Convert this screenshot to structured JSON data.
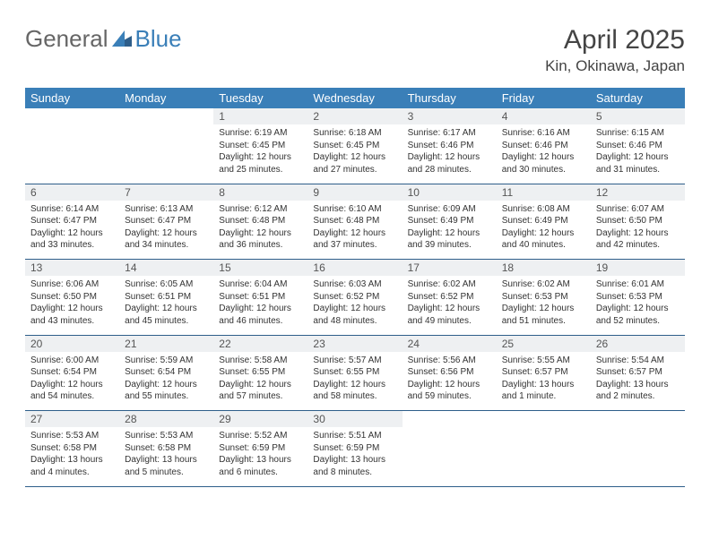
{
  "logo": {
    "part1": "General",
    "part2": "Blue"
  },
  "title": "April 2025",
  "location": "Kin, Okinawa, Japan",
  "colors": {
    "header_bg": "#3a7fb8",
    "header_text": "#ffffff",
    "daynum_bg": "#eef0f2",
    "border": "#2e5e8a",
    "body_text": "#333333"
  },
  "weekdays": [
    "Sunday",
    "Monday",
    "Tuesday",
    "Wednesday",
    "Thursday",
    "Friday",
    "Saturday"
  ],
  "weeks": [
    [
      null,
      null,
      {
        "n": "1",
        "sr": "Sunrise: 6:19 AM",
        "ss": "Sunset: 6:45 PM",
        "dl": "Daylight: 12 hours and 25 minutes."
      },
      {
        "n": "2",
        "sr": "Sunrise: 6:18 AM",
        "ss": "Sunset: 6:45 PM",
        "dl": "Daylight: 12 hours and 27 minutes."
      },
      {
        "n": "3",
        "sr": "Sunrise: 6:17 AM",
        "ss": "Sunset: 6:46 PM",
        "dl": "Daylight: 12 hours and 28 minutes."
      },
      {
        "n": "4",
        "sr": "Sunrise: 6:16 AM",
        "ss": "Sunset: 6:46 PM",
        "dl": "Daylight: 12 hours and 30 minutes."
      },
      {
        "n": "5",
        "sr": "Sunrise: 6:15 AM",
        "ss": "Sunset: 6:46 PM",
        "dl": "Daylight: 12 hours and 31 minutes."
      }
    ],
    [
      {
        "n": "6",
        "sr": "Sunrise: 6:14 AM",
        "ss": "Sunset: 6:47 PM",
        "dl": "Daylight: 12 hours and 33 minutes."
      },
      {
        "n": "7",
        "sr": "Sunrise: 6:13 AM",
        "ss": "Sunset: 6:47 PM",
        "dl": "Daylight: 12 hours and 34 minutes."
      },
      {
        "n": "8",
        "sr": "Sunrise: 6:12 AM",
        "ss": "Sunset: 6:48 PM",
        "dl": "Daylight: 12 hours and 36 minutes."
      },
      {
        "n": "9",
        "sr": "Sunrise: 6:10 AM",
        "ss": "Sunset: 6:48 PM",
        "dl": "Daylight: 12 hours and 37 minutes."
      },
      {
        "n": "10",
        "sr": "Sunrise: 6:09 AM",
        "ss": "Sunset: 6:49 PM",
        "dl": "Daylight: 12 hours and 39 minutes."
      },
      {
        "n": "11",
        "sr": "Sunrise: 6:08 AM",
        "ss": "Sunset: 6:49 PM",
        "dl": "Daylight: 12 hours and 40 minutes."
      },
      {
        "n": "12",
        "sr": "Sunrise: 6:07 AM",
        "ss": "Sunset: 6:50 PM",
        "dl": "Daylight: 12 hours and 42 minutes."
      }
    ],
    [
      {
        "n": "13",
        "sr": "Sunrise: 6:06 AM",
        "ss": "Sunset: 6:50 PM",
        "dl": "Daylight: 12 hours and 43 minutes."
      },
      {
        "n": "14",
        "sr": "Sunrise: 6:05 AM",
        "ss": "Sunset: 6:51 PM",
        "dl": "Daylight: 12 hours and 45 minutes."
      },
      {
        "n": "15",
        "sr": "Sunrise: 6:04 AM",
        "ss": "Sunset: 6:51 PM",
        "dl": "Daylight: 12 hours and 46 minutes."
      },
      {
        "n": "16",
        "sr": "Sunrise: 6:03 AM",
        "ss": "Sunset: 6:52 PM",
        "dl": "Daylight: 12 hours and 48 minutes."
      },
      {
        "n": "17",
        "sr": "Sunrise: 6:02 AM",
        "ss": "Sunset: 6:52 PM",
        "dl": "Daylight: 12 hours and 49 minutes."
      },
      {
        "n": "18",
        "sr": "Sunrise: 6:02 AM",
        "ss": "Sunset: 6:53 PM",
        "dl": "Daylight: 12 hours and 51 minutes."
      },
      {
        "n": "19",
        "sr": "Sunrise: 6:01 AM",
        "ss": "Sunset: 6:53 PM",
        "dl": "Daylight: 12 hours and 52 minutes."
      }
    ],
    [
      {
        "n": "20",
        "sr": "Sunrise: 6:00 AM",
        "ss": "Sunset: 6:54 PM",
        "dl": "Daylight: 12 hours and 54 minutes."
      },
      {
        "n": "21",
        "sr": "Sunrise: 5:59 AM",
        "ss": "Sunset: 6:54 PM",
        "dl": "Daylight: 12 hours and 55 minutes."
      },
      {
        "n": "22",
        "sr": "Sunrise: 5:58 AM",
        "ss": "Sunset: 6:55 PM",
        "dl": "Daylight: 12 hours and 57 minutes."
      },
      {
        "n": "23",
        "sr": "Sunrise: 5:57 AM",
        "ss": "Sunset: 6:55 PM",
        "dl": "Daylight: 12 hours and 58 minutes."
      },
      {
        "n": "24",
        "sr": "Sunrise: 5:56 AM",
        "ss": "Sunset: 6:56 PM",
        "dl": "Daylight: 12 hours and 59 minutes."
      },
      {
        "n": "25",
        "sr": "Sunrise: 5:55 AM",
        "ss": "Sunset: 6:57 PM",
        "dl": "Daylight: 13 hours and 1 minute."
      },
      {
        "n": "26",
        "sr": "Sunrise: 5:54 AM",
        "ss": "Sunset: 6:57 PM",
        "dl": "Daylight: 13 hours and 2 minutes."
      }
    ],
    [
      {
        "n": "27",
        "sr": "Sunrise: 5:53 AM",
        "ss": "Sunset: 6:58 PM",
        "dl": "Daylight: 13 hours and 4 minutes."
      },
      {
        "n": "28",
        "sr": "Sunrise: 5:53 AM",
        "ss": "Sunset: 6:58 PM",
        "dl": "Daylight: 13 hours and 5 minutes."
      },
      {
        "n": "29",
        "sr": "Sunrise: 5:52 AM",
        "ss": "Sunset: 6:59 PM",
        "dl": "Daylight: 13 hours and 6 minutes."
      },
      {
        "n": "30",
        "sr": "Sunrise: 5:51 AM",
        "ss": "Sunset: 6:59 PM",
        "dl": "Daylight: 13 hours and 8 minutes."
      },
      null,
      null,
      null
    ]
  ]
}
